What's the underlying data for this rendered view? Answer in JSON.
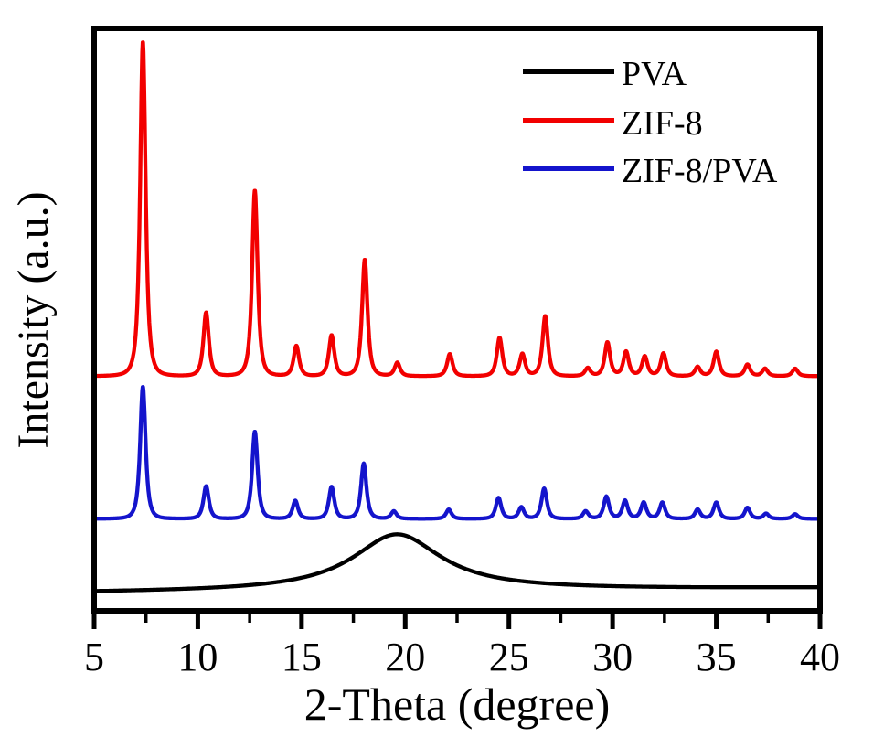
{
  "figure": {
    "description": "XRD diffractogram comparing PVA, ZIF-8 and ZIF-8/PVA"
  },
  "chart_data": {
    "type": "line",
    "title": "",
    "xlabel": "2-Theta (degree)",
    "ylabel": "Intensity (a.u.)",
    "xlim": [
      5,
      40
    ],
    "x_major_ticks": [
      5,
      10,
      15,
      20,
      25,
      30,
      35,
      40
    ],
    "x_minor_ticks": [
      7.5,
      12.5,
      17.5,
      22.5,
      27.5,
      32.5,
      37.5
    ],
    "y_axis": "arbitrary units, no ticks",
    "grid": false,
    "legend_position": "top-right inside plot",
    "peak_format": "[two_theta_deg, height_fraction_of_plot_height, hwhm_deg, optional_shape_exponent]",
    "series": [
      {
        "name": "PVA",
        "color": "#000000",
        "baseline": 0.031,
        "baseline_right": 0.039,
        "peaks": [
          [
            19.6,
            0.097,
            2.6,
            1.0
          ]
        ]
      },
      {
        "name": "ZIF-8",
        "color": "#f20000",
        "baseline": 0.403,
        "peaks": [
          [
            7.35,
            0.575,
            0.2
          ],
          [
            10.4,
            0.109,
            0.2
          ],
          [
            12.75,
            0.319,
            0.2
          ],
          [
            14.75,
            0.052,
            0.2
          ],
          [
            16.45,
            0.07,
            0.2
          ],
          [
            18.05,
            0.2,
            0.2
          ],
          [
            19.62,
            0.023,
            0.2
          ],
          [
            22.15,
            0.038,
            0.2
          ],
          [
            24.55,
            0.066,
            0.2
          ],
          [
            25.65,
            0.038,
            0.2
          ],
          [
            26.75,
            0.103,
            0.2
          ],
          [
            28.8,
            0.014,
            0.2
          ],
          [
            29.75,
            0.058,
            0.2
          ],
          [
            30.65,
            0.042,
            0.2
          ],
          [
            31.55,
            0.034,
            0.2
          ],
          [
            32.45,
            0.039,
            0.2
          ],
          [
            34.1,
            0.016,
            0.2
          ],
          [
            35.0,
            0.042,
            0.2
          ],
          [
            36.5,
            0.02,
            0.2
          ],
          [
            37.35,
            0.013,
            0.2
          ],
          [
            38.8,
            0.013,
            0.2
          ]
        ]
      },
      {
        "name": "ZIF-8/PVA",
        "color": "#1414cc",
        "baseline": 0.158,
        "peaks": [
          [
            7.35,
            0.227,
            0.2
          ],
          [
            10.4,
            0.056,
            0.2
          ],
          [
            12.75,
            0.15,
            0.2
          ],
          [
            14.7,
            0.031,
            0.2
          ],
          [
            16.45,
            0.055,
            0.2
          ],
          [
            18.0,
            0.095,
            0.2
          ],
          [
            19.45,
            0.013,
            0.2
          ],
          [
            22.1,
            0.016,
            0.2
          ],
          [
            24.5,
            0.036,
            0.2
          ],
          [
            25.6,
            0.02,
            0.2
          ],
          [
            26.7,
            0.052,
            0.2
          ],
          [
            28.7,
            0.013,
            0.2
          ],
          [
            29.7,
            0.038,
            0.2
          ],
          [
            30.6,
            0.031,
            0.2
          ],
          [
            31.5,
            0.028,
            0.2
          ],
          [
            32.4,
            0.028,
            0.2
          ],
          [
            34.1,
            0.016,
            0.2
          ],
          [
            35.0,
            0.028,
            0.2
          ],
          [
            36.5,
            0.019,
            0.2
          ],
          [
            37.4,
            0.009,
            0.2
          ],
          [
            38.8,
            0.008,
            0.2
          ]
        ]
      }
    ]
  }
}
